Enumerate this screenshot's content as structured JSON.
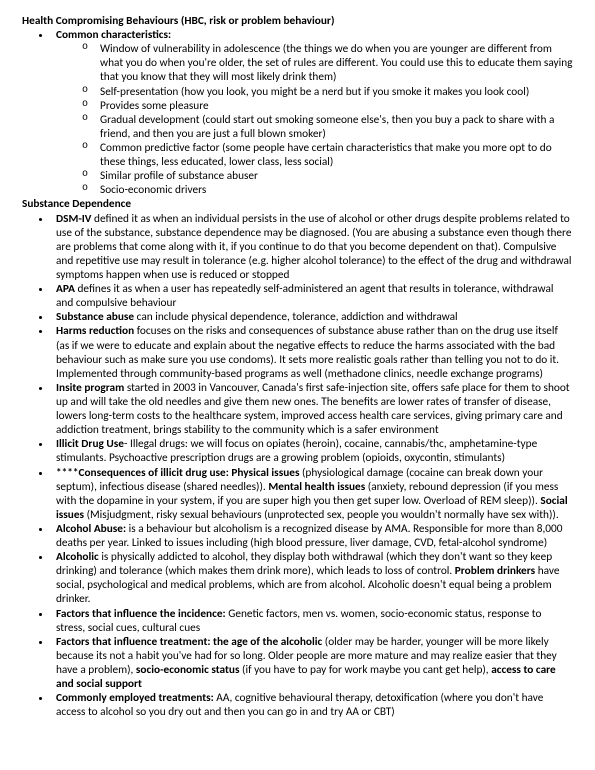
{
  "doc": {
    "h1": "Health Compromising Behaviours (HBC, risk or problem behaviour)",
    "common_label": "Common characteristics:",
    "common": {
      "c1": "Window of vulnerability in adolescence (the things we do when you are younger are different from what you do when you're older, the set of rules are different. You could use this to educate them saying that you know that they will most likely drink them)",
      "c2": "Self-presentation (how you look, you might be a nerd but if you smoke it makes you look cool)",
      "c3": "Provides some pleasure",
      "c4": "Gradual development (could start out smoking someone else's, then you buy a pack to share with a friend, and then you are just a full blown smoker)",
      "c5": "Common predictive factor (some people have certain characteristics that make you more opt to do these things, less educated, lower class, less social)",
      "c6": "Similar profile of substance abuser",
      "c7": "Socio-economic drivers"
    },
    "h2": "Substance Dependence",
    "sd": {
      "dsm_b": "DSM-IV",
      "dsm": " defined it as when an individual persists in the use of alcohol or other drugs despite problems related to use of the substance, substance dependence may be diagnosed. (You are abusing a substance even though there are problems that come along with it, if you continue to do that you become dependent on that). Compulsive and repetitive use may result in tolerance (e.g. higher alcohol tolerance) to the effect of the drug and withdrawal symptoms happen when use is reduced or stopped",
      "apa_b": "APA",
      "apa": " defines it as when a user has repeatedly self-administered an agent that results in tolerance, withdrawal and compulsive behaviour",
      "sa_b": "Substance abuse",
      "sa": " can include physical dependence, tolerance, addiction and withdrawal",
      "hr_b": "Harms reduction",
      "hr": " focuses on the risks and consequences of substance abuse rather than on the drug use itself (as if we were to educate and explain about the negative effects to reduce the harms associated with the bad behaviour such as make sure you use condoms). It sets more realistic goals rather than telling you not to do it.  Implemented through community-based programs as well (methadone clinics, needle exchange programs)",
      "ins_b": "Insite program",
      "ins": " started in 2003 in Vancouver, Canada's first safe-injection site, offers safe place for them to shoot up and will take the old needles and give them new ones. The benefits are lower rates of transfer of disease, lowers long-term costs to the healthcare system, improved access health care services, giving primary care and addiction treatment, brings stability to the community which is a safer environment",
      "idu_b": "Illicit Drug Use",
      "idu": "- Illegal drugs: we will focus on opiates (heroin), cocaine, cannabis/thc, amphetamine-type stimulants. Psychoactive prescription drugs are a growing problem (opioids, oxycontin, stimulants)",
      "cons_b1": "****Consequences of illicit drug use: Physical issues",
      "cons_t1": " (physiological damage (cocaine can break down your septum), infectious disease (shared needles)). ",
      "cons_b2": "Mental health issues",
      "cons_t2": " (anxiety, rebound depression (if you mess with the dopamine in your system, if you are super high you then get super low. Overload of REM sleep)). ",
      "cons_b3": "Social issues",
      "cons_t3": " (Misjudgment, risky sexual behaviours (unprotected sex, people you wouldn't normally have sex with)).",
      "aab_b": "Alcohol Abuse:",
      "aab": " is a behaviour but alcoholism is a recognized disease by AMA. Responsible for more than 8,000 deaths per year. Linked to issues including (high blood pressure, liver damage, CVD, fetal-alcohol syndrome)",
      "alc_b": "Alcoholic",
      "alc_t1": " is physically addicted to alcohol, they display both withdrawal (which they don't want so they keep drinking) and tolerance (which makes them drink more), which leads to loss of control. ",
      "alc_b2": "Problem drinkers",
      "alc_t2": " have social, psychological and medical problems, which are from alcohol. Alcoholic doesn't equal being a problem drinker.",
      "fi_b": "Factors that influence the incidence:",
      "fi": " Genetic factors, men vs. women, socio-economic status, response to stress, social cues, cultural cues",
      "ft_b": "Factors that influence treatment: the age of the alcoholic",
      "ft_t1": " (older may be harder, younger will be more likely because its not a habit you've had for so long. Older people are more mature and may realize easier that they have a problem), ",
      "ft_b2": "socio-economic status",
      "ft_t2": " (if you have to pay for work maybe you cant get help), ",
      "ft_b3": "access to care and social support",
      "cet_b": "Commonly employed treatments:",
      "cet": " AA, cognitive behavioural therapy, detoxification (where you don't have access to alcohol so you dry out and then you can go in and try AA or CBT)"
    }
  }
}
